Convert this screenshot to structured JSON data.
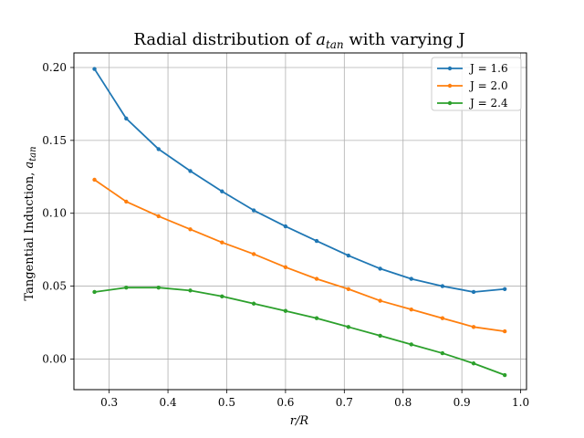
{
  "chart_data": {
    "type": "line",
    "title_main": "Radial distribution of ",
    "title_var": "a",
    "title_sub": "tan",
    "title_tail": " with varying J",
    "xlabel_var": "r/R",
    "ylabel_main": "Tangential Induction, ",
    "ylabel_var": "a",
    "ylabel_sub": "tan",
    "xlim": [
      0.24,
      1.01
    ],
    "ylim": [
      -0.021,
      0.21
    ],
    "xticks": [
      0.3,
      0.4,
      0.5,
      0.6,
      0.7,
      0.8,
      0.9,
      1.0
    ],
    "xtick_labels": [
      "0.3",
      "0.4",
      "0.5",
      "0.6",
      "0.7",
      "0.8",
      "0.9",
      "1.0"
    ],
    "yticks": [
      0.0,
      0.05,
      0.1,
      0.15,
      0.2
    ],
    "ytick_labels": [
      "0.00",
      "0.05",
      "0.10",
      "0.15",
      "0.20"
    ],
    "grid": true,
    "legend_position": "top-right",
    "x": [
      0.275,
      0.329,
      0.384,
      0.438,
      0.492,
      0.546,
      0.6,
      0.653,
      0.707,
      0.761,
      0.814,
      0.867,
      0.92,
      0.973
    ],
    "series": [
      {
        "name": "J = 1.6",
        "color": "#1f77b4",
        "values": [
          0.199,
          0.165,
          0.144,
          0.129,
          0.115,
          0.102,
          0.091,
          0.081,
          0.071,
          0.062,
          0.055,
          0.05,
          0.046,
          0.048
        ]
      },
      {
        "name": "J = 2.0",
        "color": "#ff7f0e",
        "values": [
          0.123,
          0.108,
          0.098,
          0.089,
          0.08,
          0.072,
          0.063,
          0.055,
          0.048,
          0.04,
          0.034,
          0.028,
          0.022,
          0.019
        ]
      },
      {
        "name": "J = 2.4",
        "color": "#2ca02c",
        "values": [
          0.046,
          0.049,
          0.049,
          0.047,
          0.043,
          0.038,
          0.033,
          0.028,
          0.022,
          0.016,
          0.01,
          0.004,
          -0.003,
          -0.011
        ]
      }
    ]
  }
}
